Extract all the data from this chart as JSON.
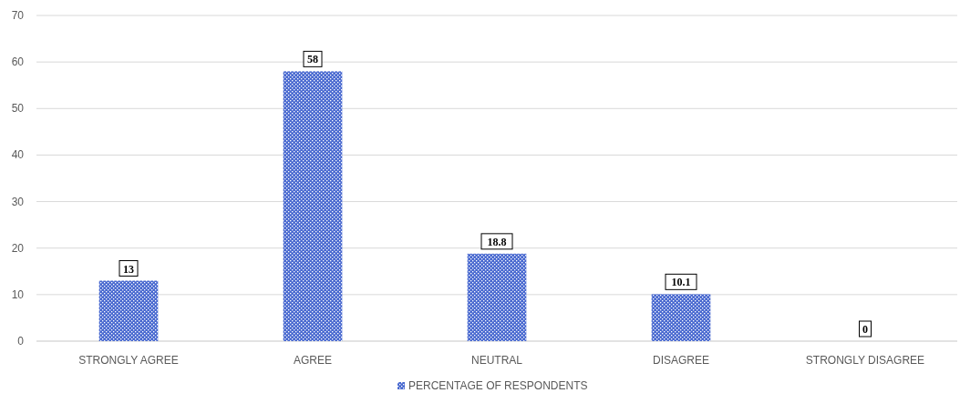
{
  "chart_data": {
    "type": "bar",
    "categories": [
      "STRONGLY AGREE",
      "AGREE",
      "NEUTRAL",
      "DISAGREE",
      "STRONGLY DISAGREE"
    ],
    "series": [
      {
        "name": "PERCENTAGE OF RESPONDENTS",
        "color": "#4a6ad0",
        "values": [
          13,
          58,
          18.8,
          10.1,
          0
        ]
      }
    ],
    "ylim": [
      0,
      70
    ],
    "yticks": [
      0,
      10,
      20,
      30,
      40,
      50,
      60,
      70
    ],
    "grid": "y",
    "legend": "bottom",
    "data_labels": true
  }
}
